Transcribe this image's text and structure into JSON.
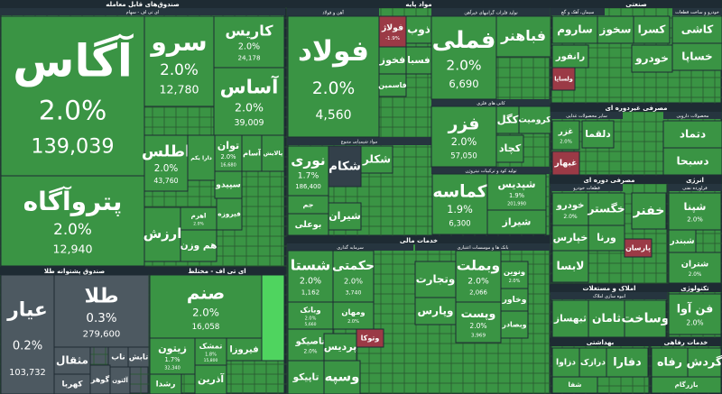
{
  "groups": [
    {
      "title": "صندوق‌های قابل معامله",
      "tone": "green",
      "sections": [
        "ای تی اف - سهام"
      ],
      "tiles": [
        {
          "name": "آگاس",
          "change": "2.0%",
          "volume": "139,039",
          "tone": "green"
        },
        {
          "name": "پتروآگاه",
          "change": "2.0%",
          "volume": "12,940",
          "tone": "green"
        },
        {
          "name": "سرو",
          "change": "2.0%",
          "volume": "12,780",
          "tone": "green"
        },
        {
          "name": "کاریس",
          "change": "2.0%",
          "volume": "24,178",
          "tone": "green"
        },
        {
          "name": "آساس",
          "change": "2.0%",
          "volume": "39,009",
          "tone": "green"
        },
        {
          "name": "اطلس",
          "change": "2.0%",
          "volume": "43,760",
          "tone": "green"
        },
        {
          "name": "دارا یکم",
          "tone": "green"
        },
        {
          "name": "توان",
          "change": "2.0%",
          "volume": "16,680",
          "tone": "green"
        },
        {
          "name": "سپیدو",
          "tone": "green"
        },
        {
          "name": "اهرم",
          "change": "2.0%",
          "tone": "green"
        },
        {
          "name": "هم وزن",
          "tone": "green"
        },
        {
          "name": "ارزش",
          "tone": "green"
        },
        {
          "name": "آسام",
          "tone": "green"
        },
        {
          "name": "پالایش",
          "tone": "green"
        },
        {
          "name": "فیروزه",
          "tone": "green"
        }
      ]
    },
    {
      "title": "صندوق پشتوانه طلا",
      "tone": "grey",
      "sections": [],
      "tiles": [
        {
          "name": "عیار",
          "change": "0.2%",
          "volume": "103,732",
          "tone": "grey"
        },
        {
          "name": "طلا",
          "change": "0.3%",
          "volume": "279,600",
          "tone": "grey"
        },
        {
          "name": "مثقال",
          "tone": "grey"
        },
        {
          "name": "ناب",
          "tone": "grey"
        },
        {
          "name": "تابش",
          "tone": "grey"
        },
        {
          "name": "کهربا",
          "tone": "grey"
        },
        {
          "name": "گوهر",
          "tone": "grey"
        },
        {
          "name": "آلتون",
          "tone": "grey"
        }
      ]
    },
    {
      "title": "ای تی اف - مختلط",
      "tone": "green",
      "sections": [],
      "tiles": [
        {
          "name": "صنم",
          "change": "2.0%",
          "volume": "16,058",
          "tone": "green"
        },
        {
          "name": "زیتون",
          "change": "1.7%",
          "volume": "32,340",
          "tone": "green"
        },
        {
          "name": "تمشک",
          "change": "1.8%",
          "volume": "15,800",
          "tone": "green"
        },
        {
          "name": "فیروزا",
          "tone": "green"
        },
        {
          "name": "رشدا",
          "tone": "green"
        },
        {
          "name": "آذرین",
          "tone": "green"
        }
      ]
    },
    {
      "title": "مواد پایه",
      "tone": "green",
      "sections": [
        "آهن و فولاد",
        "تولید فلزات گرانبهای غیرآهن",
        "کانی های فلزی",
        "مواد شیمیایی متنوع",
        "تولید کود و ترکیبات نیتروژن"
      ],
      "tiles": [
        {
          "name": "فولاد",
          "change": "2.0%",
          "volume": "4,560",
          "tone": "green"
        },
        {
          "name": "فولاژ",
          "change": "-1.9%",
          "tone": "red"
        },
        {
          "name": "ذوب",
          "tone": "green"
        },
        {
          "name": "فخوز",
          "tone": "green"
        },
        {
          "name": "فسبا",
          "tone": "green"
        },
        {
          "name": "فاسمین",
          "tone": "green"
        },
        {
          "name": "فملی",
          "change": "2.0%",
          "volume": "6,690",
          "tone": "green"
        },
        {
          "name": "فباهنر",
          "tone": "green"
        },
        {
          "name": "فزر",
          "change": "2.0%",
          "volume": "57,050",
          "tone": "green"
        },
        {
          "name": "کگل",
          "tone": "green"
        },
        {
          "name": "کرومیت",
          "tone": "green"
        },
        {
          "name": "کچاد",
          "tone": "green"
        },
        {
          "name": "نوری",
          "change": "1.7%",
          "volume": "186,400",
          "tone": "green"
        },
        {
          "name": "شکام",
          "tone": "dark"
        },
        {
          "name": "شکلر",
          "tone": "green"
        },
        {
          "name": "شیران",
          "tone": "green"
        },
        {
          "name": "جم",
          "tone": "green"
        },
        {
          "name": "بوعلی",
          "tone": "green"
        },
        {
          "name": "کماسه",
          "change": "1.9%",
          "volume": "6,300",
          "tone": "green"
        },
        {
          "name": "شپدیس",
          "change": "1.9%",
          "volume": "201,990",
          "tone": "green"
        },
        {
          "name": "شیراز",
          "tone": "green"
        }
      ]
    },
    {
      "title": "خدمات مالی",
      "tone": "green",
      "sections": [
        "سرمایه گذاری",
        "بانک ها و موسسات اعتباری"
      ],
      "tiles": [
        {
          "name": "شستا",
          "change": "2.0%",
          "volume": "1,162",
          "tone": "green"
        },
        {
          "name": "حکمتی",
          "change": "2.0%",
          "volume": "3,740",
          "tone": "green"
        },
        {
          "name": "وبانک",
          "change": "2.0%",
          "volume": "5,660",
          "tone": "green"
        },
        {
          "name": "ومهان",
          "change": "2.0%",
          "tone": "green"
        },
        {
          "name": "وتوکا",
          "tone": "red"
        },
        {
          "name": "تاصیکو",
          "change": "2.0%",
          "tone": "green"
        },
        {
          "name": "تاپیکو",
          "tone": "green"
        },
        {
          "name": "وسپه",
          "tone": "green"
        },
        {
          "name": "پردیس",
          "tone": "green"
        },
        {
          "name": "وبملت",
          "change": "2.0%",
          "volume": "2,066",
          "tone": "green"
        },
        {
          "name": "ونوین",
          "change": "2.0%",
          "tone": "green"
        },
        {
          "name": "وپست",
          "change": "2.0%",
          "volume": "3,969",
          "tone": "green"
        },
        {
          "name": "وخاور",
          "tone": "green"
        },
        {
          "name": "وبصادر",
          "tone": "green"
        },
        {
          "name": "وتجارت",
          "tone": "green"
        },
        {
          "name": "وپارس",
          "tone": "green"
        }
      ]
    },
    {
      "title": "صنعتی",
      "tone": "green",
      "sections": [
        "سیمان، آهک و گچ",
        "خودرو و ساخت قطعات"
      ],
      "tiles": [
        {
          "name": "ساروم",
          "tone": "green"
        },
        {
          "name": "سخوز",
          "tone": "green"
        },
        {
          "name": "کسرا",
          "tone": "green"
        },
        {
          "name": "کاشی",
          "tone": "green"
        },
        {
          "name": "خساپا",
          "tone": "green"
        },
        {
          "name": "خودرو",
          "tone": "green"
        },
        {
          "name": "رانفور",
          "tone": "green"
        },
        {
          "name": "ولساپا",
          "tone": "red"
        }
      ]
    },
    {
      "title": "مصرفی غیردوره ای",
      "tone": "green",
      "sections": [
        "سایر محصولات غذایی",
        "محصولات دارویی"
      ],
      "tiles": [
        {
          "name": "غزر",
          "change": "2.0%",
          "tone": "green"
        },
        {
          "name": "غبهار",
          "tone": "red"
        },
        {
          "name": "دلقما",
          "tone": "green"
        },
        {
          "name": "دتماد",
          "tone": "green"
        },
        {
          "name": "دسبحا",
          "tone": "green"
        }
      ]
    },
    {
      "title": "مصرفی دوره ای",
      "tone": "green",
      "sections": [
        "قطعات خودرو"
      ],
      "tiles": [
        {
          "name": "خودرو",
          "change": "2.0%",
          "tone": "green"
        },
        {
          "name": "خگستر",
          "tone": "green"
        },
        {
          "name": "خپارس",
          "tone": "green"
        },
        {
          "name": "ورنا",
          "tone": "green"
        },
        {
          "name": "پارسان",
          "tone": "red"
        },
        {
          "name": "لابسا",
          "tone": "green"
        },
        {
          "name": "خفنر",
          "tone": "green"
        }
      ]
    },
    {
      "title": "انرژی",
      "tone": "green",
      "sections": [
        "فراورده نفتی"
      ],
      "tiles": [
        {
          "name": "شپنا",
          "change": "2.0%",
          "tone": "green"
        },
        {
          "name": "شبندر",
          "tone": "green"
        },
        {
          "name": "شتران",
          "change": "2.0%",
          "tone": "green"
        }
      ]
    },
    {
      "title": "املاک و مستغلات",
      "tone": "green",
      "sections": [
        "انبوه سازی املاک"
      ],
      "tiles": [
        {
          "name": "ثبهساز",
          "tone": "green"
        },
        {
          "name": "ثامان",
          "tone": "green"
        },
        {
          "name": "وساخت",
          "tone": "green"
        }
      ]
    },
    {
      "title": "تکنولوژی",
      "tone": "green",
      "sections": [],
      "tiles": [
        {
          "name": "فن آوا",
          "change": "2.0%",
          "tone": "green"
        }
      ]
    },
    {
      "title": "بهداشتی",
      "tone": "green",
      "sections": [],
      "tiles": [
        {
          "name": "دزاوا",
          "tone": "green"
        },
        {
          "name": "درازک",
          "tone": "green"
        },
        {
          "name": "دفارا",
          "tone": "green"
        },
        {
          "name": "شفا",
          "tone": "green"
        }
      ]
    },
    {
      "title": "خدمات رفاهی",
      "tone": "green",
      "sections": [],
      "tiles": [
        {
          "name": "رفاه",
          "tone": "green"
        },
        {
          "name": "گردش",
          "tone": "green"
        },
        {
          "name": "بازرگام",
          "tone": "green"
        }
      ]
    }
  ]
}
